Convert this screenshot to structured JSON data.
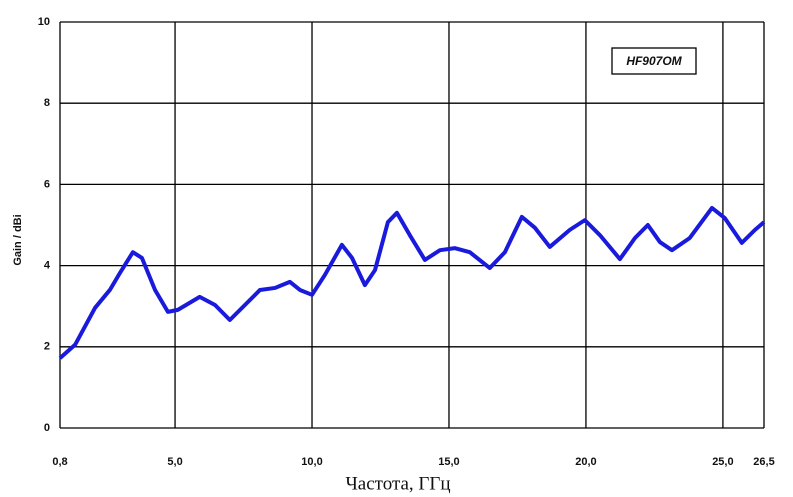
{
  "chart_data": {
    "type": "line",
    "x_label": "Частота, ГГц",
    "y_label": "Gain / dBi",
    "x": [
      0.8,
      1.35,
      2.08,
      2.62,
      2.99,
      3.46,
      3.79,
      4.27,
      4.74,
      5.1,
      5.9,
      6.46,
      7.0,
      7.55,
      8.1,
      8.65,
      9.19,
      9.56,
      10.0,
      10.47,
      11.09,
      11.46,
      11.93,
      12.3,
      12.77,
      13.1,
      13.57,
      14.12,
      14.67,
      15.22,
      15.76,
      16.49,
      17.04,
      17.66,
      18.14,
      18.68,
      19.41,
      19.96,
      20.51,
      21.24,
      21.79,
      22.26,
      22.7,
      23.14,
      23.79,
      24.6,
      25.07,
      25.69,
      26.17,
      26.5
    ],
    "series": [
      {
        "name": "HF907OM",
        "color": "#1a1adc",
        "values": [
          1.72,
          2.05,
          2.96,
          3.4,
          3.82,
          4.33,
          4.19,
          3.4,
          2.86,
          2.91,
          3.23,
          3.03,
          2.66,
          3.03,
          3.4,
          3.45,
          3.6,
          3.4,
          3.28,
          3.77,
          4.51,
          4.19,
          3.52,
          3.89,
          5.07,
          5.3,
          4.75,
          4.14,
          4.38,
          4.43,
          4.33,
          3.94,
          4.33,
          5.2,
          4.93,
          4.46,
          4.88,
          5.12,
          4.75,
          4.16,
          4.68,
          5.0,
          4.58,
          4.38,
          4.68,
          5.42,
          5.17,
          4.56,
          4.88,
          5.07
        ]
      }
    ],
    "xlim": [
      0.8,
      26.5
    ],
    "xticks": [
      {
        "value": 0.8,
        "label": "0,8"
      },
      {
        "value": 5.0,
        "label": "5,0"
      },
      {
        "value": 10.0,
        "label": "10,0"
      },
      {
        "value": 15.0,
        "label": "15,0"
      },
      {
        "value": 20.0,
        "label": "20,0"
      },
      {
        "value": 25.0,
        "label": "25,0"
      },
      {
        "value": 26.5,
        "label": "26,5"
      }
    ],
    "ylim": [
      0,
      10
    ],
    "yticks": [
      0,
      2,
      4,
      6,
      8,
      10
    ],
    "grid": true
  }
}
